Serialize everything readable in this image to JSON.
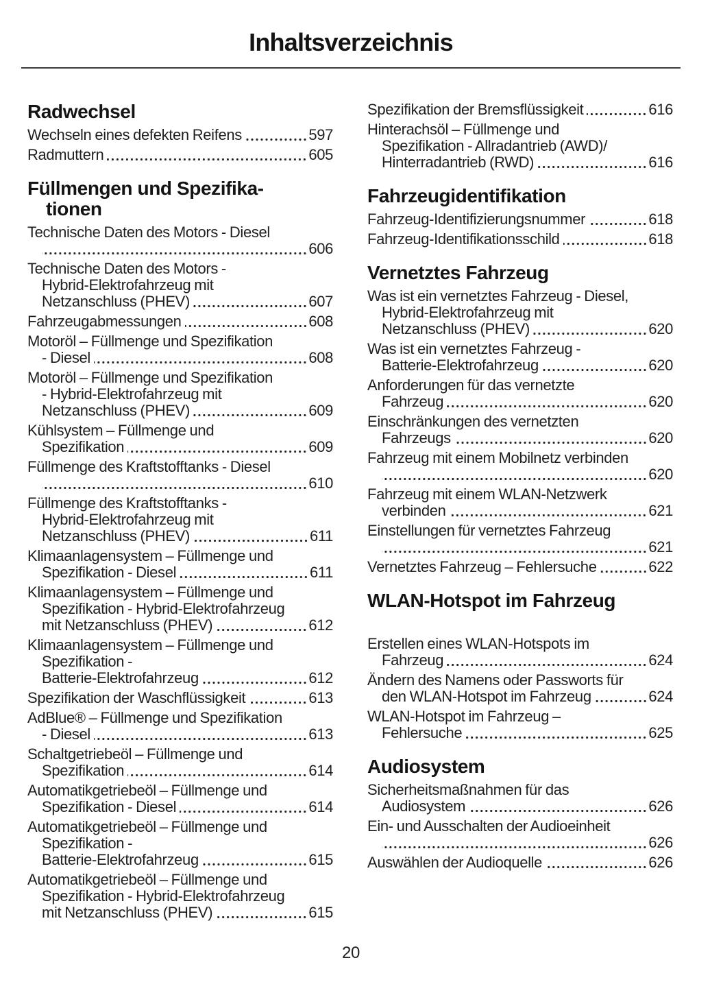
{
  "page": {
    "title": "Inhaltsverzeichnis",
    "page_number": "20"
  },
  "colors": {
    "background": "#ffffff",
    "text": "#1f1f1f",
    "heading": "#141414",
    "divider": "#3b3b3b"
  },
  "toc": {
    "columns": [
      {
        "blocks": [
          {
            "type": "heading",
            "lines": [
              "Radwechsel"
            ]
          },
          {
            "type": "entry",
            "lines": [
              "Wechseln eines defekten Reifens"
            ],
            "page": "597"
          },
          {
            "type": "entry",
            "lines": [
              "Radmuttern"
            ],
            "page": "605"
          },
          {
            "type": "heading",
            "lines": [
              "Füllmengen und Spezifika-",
              "tionen"
            ]
          },
          {
            "type": "entry",
            "lines": [
              "Technische Daten des Motors - Diesel",
              ""
            ],
            "page": "606"
          },
          {
            "type": "entry",
            "lines": [
              "Technische Daten des Motors -",
              "Hybrid-Elektrofahrzeug mit",
              "Netzanschluss (PHEV)"
            ],
            "page": "607"
          },
          {
            "type": "entry",
            "lines": [
              "Fahrzeugabmessungen"
            ],
            "page": "608"
          },
          {
            "type": "entry",
            "lines": [
              "Motoröl – Füllmenge und Spezifikation",
              "- Diesel"
            ],
            "page": "608"
          },
          {
            "type": "entry",
            "lines": [
              "Motoröl – Füllmenge und Spezifikation",
              "- Hybrid-Elektrofahrzeug mit",
              "Netzanschluss (PHEV)"
            ],
            "page": "609"
          },
          {
            "type": "entry",
            "lines": [
              "Kühlsystem – Füllmenge und",
              "Spezifikation"
            ],
            "page": "609"
          },
          {
            "type": "entry",
            "lines": [
              "Füllmenge des Kraftstofftanks - Diesel",
              ""
            ],
            "page": "610"
          },
          {
            "type": "entry",
            "lines": [
              "Füllmenge des Kraftstofftanks -",
              "Hybrid-Elektrofahrzeug mit",
              "Netzanschluss (PHEV)"
            ],
            "page": "611"
          },
          {
            "type": "entry",
            "lines": [
              "Klimaanlagensystem – Füllmenge und",
              "Spezifikation - Diesel"
            ],
            "page": "611"
          },
          {
            "type": "entry",
            "lines": [
              "Klimaanlagensystem – Füllmenge und",
              "Spezifikation - Hybrid-Elektrofahrzeug",
              "mit Netzanschluss (PHEV)"
            ],
            "page": "612"
          },
          {
            "type": "entry",
            "lines": [
              "Klimaanlagensystem – Füllmenge und",
              "Spezifikation -",
              "Batterie-Elektrofahrzeug"
            ],
            "page": "612"
          },
          {
            "type": "entry",
            "lines": [
              "Spezifikation der Waschflüssigkeit"
            ],
            "page": "613"
          },
          {
            "type": "entry",
            "lines": [
              "AdBlue® – Füllmenge und Spezifikation",
              "- Diesel"
            ],
            "page": "613"
          },
          {
            "type": "entry",
            "lines": [
              "Schaltgetriebeöl – Füllmenge und",
              "Spezifikation"
            ],
            "page": "614"
          },
          {
            "type": "entry",
            "lines": [
              "Automatikgetriebeöl – Füllmenge und",
              "Spezifikation - Diesel"
            ],
            "page": "614"
          },
          {
            "type": "entry",
            "lines": [
              "Automatikgetriebeöl – Füllmenge und",
              "Spezifikation -",
              "Batterie-Elektrofahrzeug"
            ],
            "page": "615"
          },
          {
            "type": "entry",
            "lines": [
              "Automatikgetriebeöl – Füllmenge und",
              "Spezifikation - Hybrid-Elektrofahrzeug",
              "mit Netzanschluss (PHEV)"
            ],
            "page": "615"
          }
        ]
      },
      {
        "blocks": [
          {
            "type": "entry",
            "lines": [
              "Spezifikation der Bremsflüssigkeit"
            ],
            "page": "616"
          },
          {
            "type": "entry",
            "lines": [
              "Hinterachsöl – Füllmenge und",
              "Spezifikation - Allradantrieb (AWD)/",
              "Hinterradantrieb (RWD)"
            ],
            "page": "616"
          },
          {
            "type": "heading",
            "lines": [
              "Fahrzeugidentifikation"
            ]
          },
          {
            "type": "entry",
            "lines": [
              "Fahrzeug-Identifizierungsnummer"
            ],
            "page": "618"
          },
          {
            "type": "entry",
            "lines": [
              "Fahrzeug-Identifikationsschild"
            ],
            "page": "618"
          },
          {
            "type": "heading",
            "lines": [
              "Vernetztes Fahrzeug"
            ]
          },
          {
            "type": "entry",
            "lines": [
              "Was ist ein vernetztes Fahrzeug - Diesel,",
              "Hybrid-Elektrofahrzeug mit",
              "Netzanschluss (PHEV)"
            ],
            "page": "620"
          },
          {
            "type": "entry",
            "lines": [
              "Was ist ein vernetztes Fahrzeug -",
              "Batterie-Elektrofahrzeug"
            ],
            "page": "620"
          },
          {
            "type": "entry",
            "lines": [
              "Anforderungen für das vernetzte",
              "Fahrzeug"
            ],
            "page": "620"
          },
          {
            "type": "entry",
            "lines": [
              "Einschränkungen des vernetzten",
              "Fahrzeugs"
            ],
            "page": "620"
          },
          {
            "type": "entry",
            "lines": [
              "Fahrzeug mit einem Mobilnetz verbinden",
              ""
            ],
            "page": "620"
          },
          {
            "type": "entry",
            "lines": [
              "Fahrzeug mit einem WLAN-Netzwerk",
              "verbinden"
            ],
            "page": "621"
          },
          {
            "type": "entry",
            "lines": [
              "Einstellungen für vernetztes Fahrzeug",
              ""
            ],
            "page": "621"
          },
          {
            "type": "entry",
            "lines": [
              "Vernetztes Fahrzeug – Fehlersuche"
            ],
            "page": "622"
          },
          {
            "type": "heading",
            "lines": [
              "WLAN-Hotspot im Fahrzeug"
            ],
            "extra_gap_after": true
          },
          {
            "type": "entry",
            "lines": [
              "Erstellen eines WLAN-Hotspots im",
              "Fahrzeug"
            ],
            "page": "624"
          },
          {
            "type": "entry",
            "lines": [
              "Ändern des Namens oder Passworts für",
              "den WLAN-Hotspot im Fahrzeug"
            ],
            "page": "624"
          },
          {
            "type": "entry",
            "lines": [
              "WLAN-Hotspot im Fahrzeug –",
              "Fehlersuche"
            ],
            "page": "625"
          },
          {
            "type": "heading",
            "lines": [
              "Audiosystem"
            ]
          },
          {
            "type": "entry",
            "lines": [
              "Sicherheitsmaßnahmen für das",
              "Audiosystem"
            ],
            "page": "626"
          },
          {
            "type": "entry",
            "lines": [
              "Ein- und Ausschalten der Audioeinheit",
              ""
            ],
            "page": "626"
          },
          {
            "type": "entry",
            "lines": [
              "Auswählen der Audioquelle"
            ],
            "page": "626"
          }
        ]
      }
    ]
  }
}
